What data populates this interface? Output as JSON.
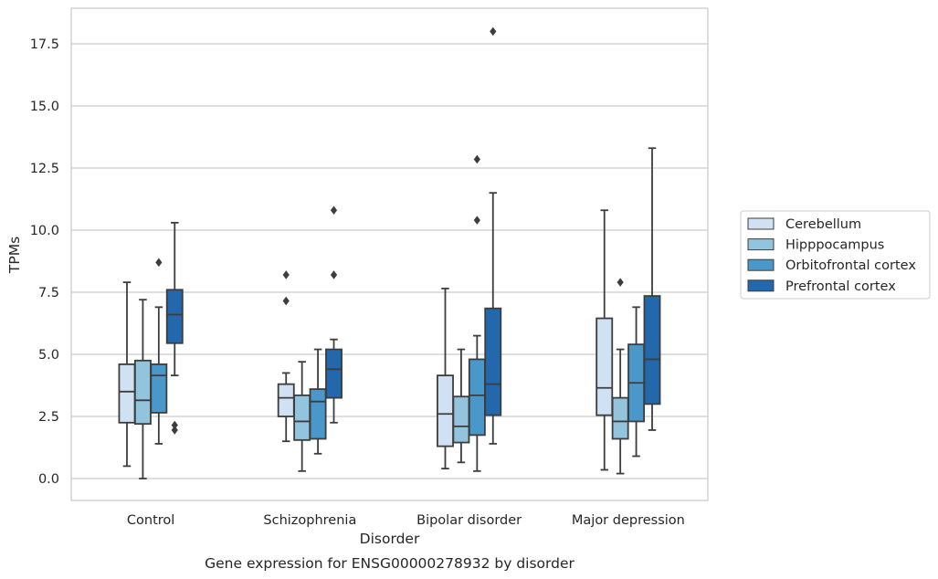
{
  "chart_data": {
    "type": "box",
    "title": "",
    "caption": "Gene expression for ENSG00000278932 by disorder",
    "xlabel": "Disorder",
    "ylabel": "TPMs",
    "ylim": [
      -0.9,
      18.9
    ],
    "yticks": [
      "0.0",
      "2.5",
      "5.0",
      "7.5",
      "10.0",
      "12.5",
      "15.0",
      "17.5"
    ],
    "grid": "horizontal",
    "legend_position": "right",
    "categories": [
      "Control",
      "Schizophrenia",
      "Bipolar disorder",
      "Major depression"
    ],
    "series": [
      {
        "name": "Cerebellum",
        "color": "#cfe1f2",
        "boxes": [
          {
            "whisker_low": 0.5,
            "q1": 2.25,
            "median": 3.5,
            "q3": 4.6,
            "whisker_high": 7.9,
            "outliers": []
          },
          {
            "whisker_low": 1.5,
            "q1": 2.5,
            "median": 3.25,
            "q3": 3.8,
            "whisker_high": 4.25,
            "outliers": [
              8.2,
              7.15
            ]
          },
          {
            "whisker_low": 0.4,
            "q1": 1.3,
            "median": 2.6,
            "q3": 4.15,
            "whisker_high": 7.65,
            "outliers": []
          },
          {
            "whisker_low": 0.35,
            "q1": 2.55,
            "median": 3.65,
            "q3": 6.45,
            "whisker_high": 10.8,
            "outliers": []
          }
        ]
      },
      {
        "name": "Hipppocampus",
        "color": "#93c4de",
        "boxes": [
          {
            "whisker_low": 0.0,
            "q1": 2.2,
            "median": 3.15,
            "q3": 4.75,
            "whisker_high": 7.2,
            "outliers": []
          },
          {
            "whisker_low": 0.3,
            "q1": 1.55,
            "median": 2.3,
            "q3": 3.35,
            "whisker_high": 4.7,
            "outliers": []
          },
          {
            "whisker_low": 0.65,
            "q1": 1.45,
            "median": 2.1,
            "q3": 3.3,
            "whisker_high": 5.2,
            "outliers": []
          },
          {
            "whisker_low": 0.2,
            "q1": 1.6,
            "median": 2.3,
            "q3": 3.25,
            "whisker_high": 5.2,
            "outliers": [
              7.9
            ]
          }
        ]
      },
      {
        "name": "Orbitofrontal cortex",
        "color": "#4a98c9",
        "boxes": [
          {
            "whisker_low": 1.4,
            "q1": 2.65,
            "median": 4.15,
            "q3": 4.6,
            "whisker_high": 6.9,
            "outliers": [
              8.7
            ]
          },
          {
            "whisker_low": 1.0,
            "q1": 1.6,
            "median": 3.1,
            "q3": 3.6,
            "whisker_high": 5.2,
            "outliers": []
          },
          {
            "whisker_low": 0.3,
            "q1": 1.75,
            "median": 3.35,
            "q3": 4.8,
            "whisker_high": 5.75,
            "outliers": [
              12.85,
              10.4
            ]
          },
          {
            "whisker_low": 0.9,
            "q1": 2.3,
            "median": 3.85,
            "q3": 5.4,
            "whisker_high": 6.9,
            "outliers": []
          }
        ]
      },
      {
        "name": "Prefrontal cortex",
        "color": "#2367ac",
        "boxes": [
          {
            "whisker_low": 4.15,
            "q1": 5.45,
            "median": 6.6,
            "q3": 7.6,
            "whisker_high": 10.3,
            "outliers": [
              2.15,
              1.95
            ]
          },
          {
            "whisker_low": 2.25,
            "q1": 3.25,
            "median": 4.4,
            "q3": 5.2,
            "whisker_high": 5.6,
            "outliers": [
              10.8,
              8.2
            ]
          },
          {
            "whisker_low": 1.4,
            "q1": 2.55,
            "median": 3.8,
            "q3": 6.85,
            "whisker_high": 11.5,
            "outliers": [
              18.0
            ]
          },
          {
            "whisker_low": 1.95,
            "q1": 3.0,
            "median": 4.8,
            "q3": 7.35,
            "whisker_high": 13.3,
            "outliers": []
          }
        ]
      }
    ]
  }
}
